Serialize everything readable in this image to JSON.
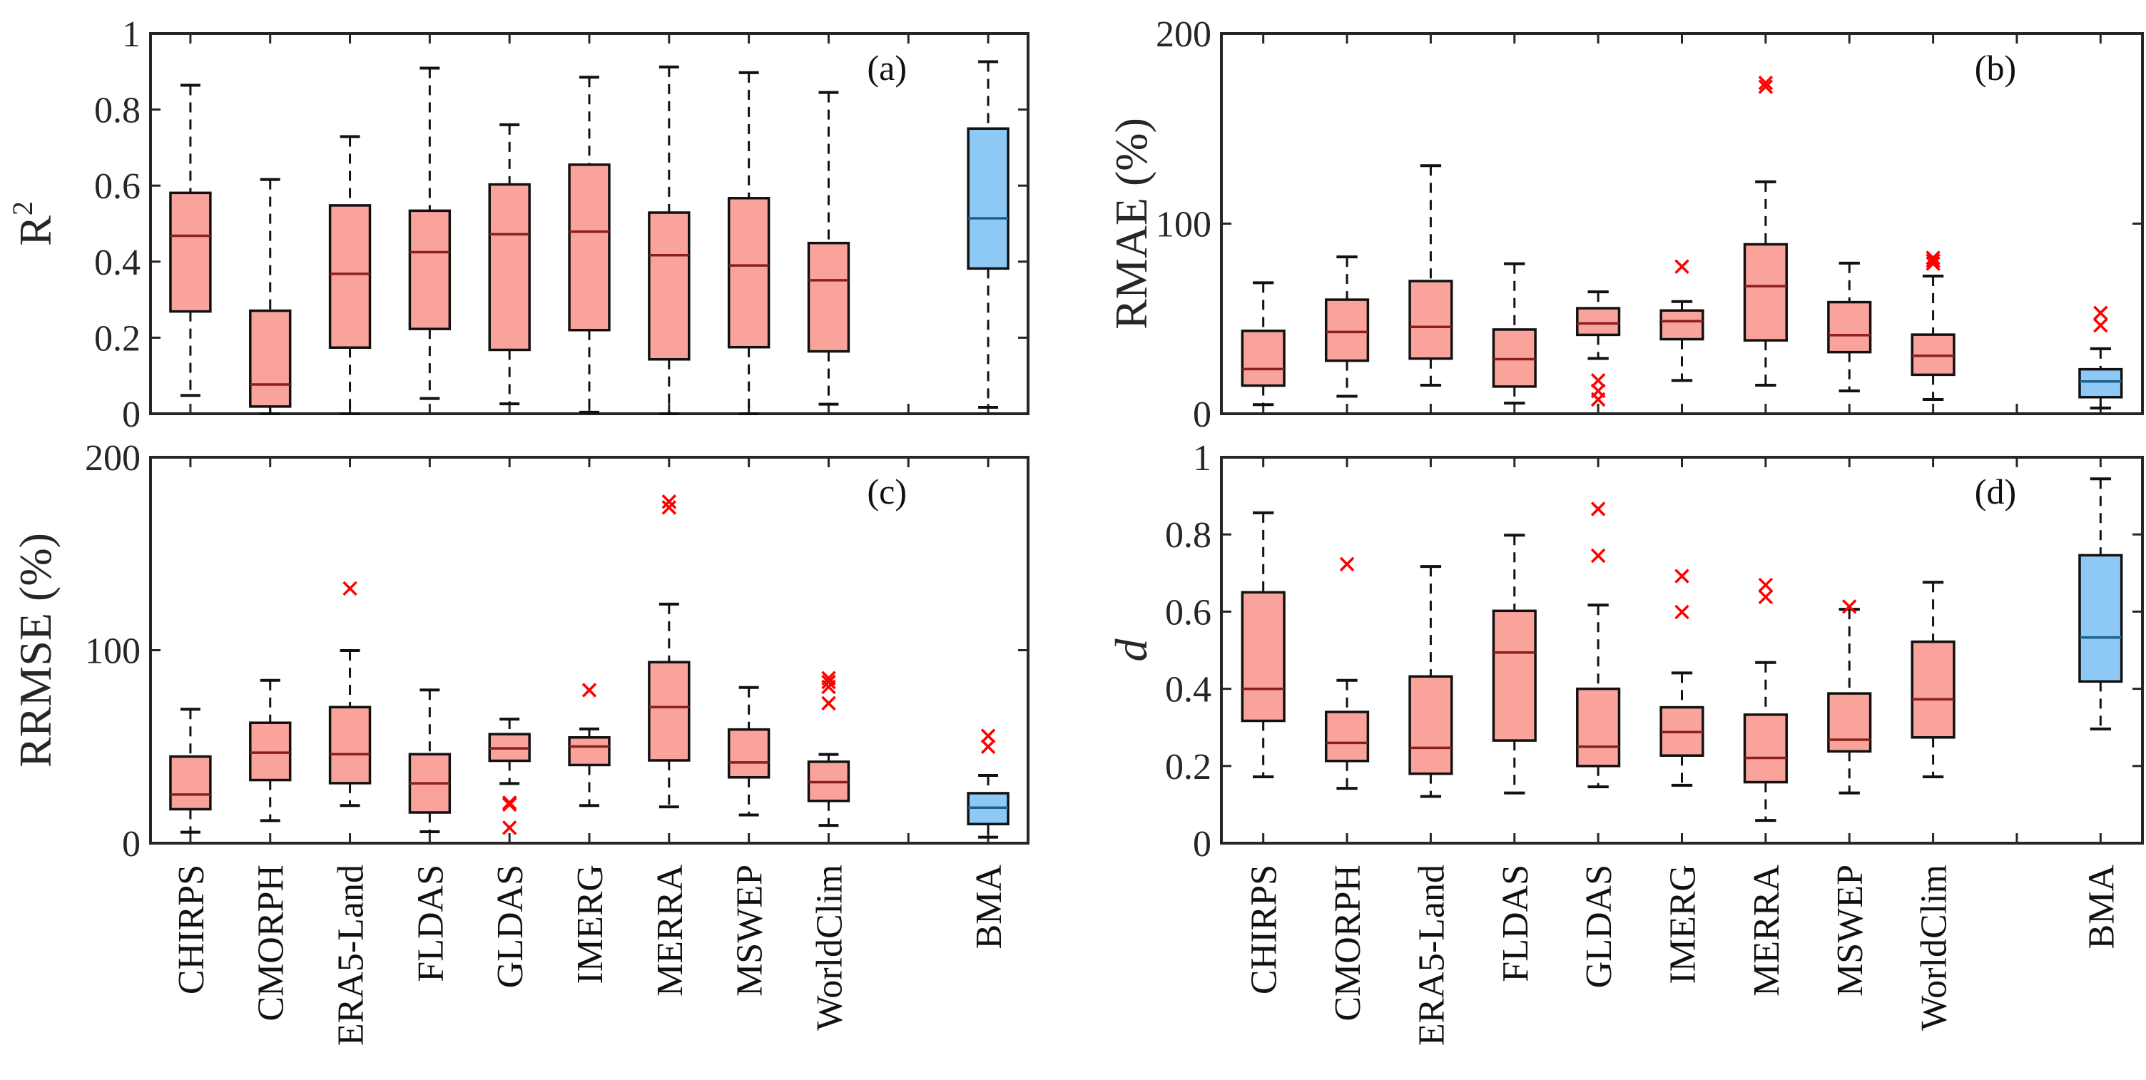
{
  "chart_data": {
    "type": "boxplot",
    "categories": [
      "CHIRPS",
      "CMORPH",
      "ERA5-Land",
      "FLDAS",
      "GLDAS",
      "IMERG",
      "MERRA",
      "MSWEP",
      "WorldClim",
      "",
      "BMA"
    ],
    "colors": {
      "products_fill": "#f9a39b",
      "products_median": "#8b1e1e",
      "bma_fill": "#8ec9f6",
      "bma_median": "#1f5f8b",
      "outlier": "#ff0000",
      "frame": "#262626"
    },
    "box_order": [
      "whisker_low",
      "q1",
      "median",
      "q3",
      "whisker_high",
      "outliers"
    ],
    "panels": [
      {
        "tag": "(a)",
        "ylabel": "R",
        "ylabel_sup": "2",
        "ylabel_italic": false,
        "ylim": [
          0,
          1
        ],
        "yticks": [
          "0",
          "0.2",
          "0.4",
          "0.6",
          "0.8",
          "1"
        ],
        "ytick_values": [
          0,
          0.2,
          0.4,
          0.6,
          0.8,
          1
        ],
        "boxes": [
          [
            0.048,
            0.269,
            0.468,
            0.581,
            0.864,
            []
          ],
          [
            0.0,
            0.019,
            0.077,
            0.271,
            0.616,
            []
          ],
          [
            0.0,
            0.174,
            0.368,
            0.548,
            0.729,
            []
          ],
          [
            0.04,
            0.223,
            0.425,
            0.534,
            0.909,
            []
          ],
          [
            0.026,
            0.168,
            0.472,
            0.603,
            0.76,
            []
          ],
          [
            0.004,
            0.22,
            0.479,
            0.655,
            0.885,
            []
          ],
          [
            0.0,
            0.143,
            0.417,
            0.529,
            0.912,
            []
          ],
          [
            0.0,
            0.175,
            0.39,
            0.567,
            0.897,
            []
          ],
          [
            0.025,
            0.164,
            0.351,
            0.449,
            0.845,
            []
          ],
          null,
          [
            0.017,
            0.382,
            0.514,
            0.75,
            0.926,
            []
          ]
        ]
      },
      {
        "tag": "(b)",
        "ylabel": "RMAE (%)",
        "ylabel_sup": "",
        "ylabel_italic": false,
        "ylim": [
          0,
          200
        ],
        "yticks": [
          "0",
          "100",
          "200"
        ],
        "ytick_values": [
          0,
          100,
          200
        ],
        "boxes": [
          [
            4.8,
            14.8,
            23.5,
            43.6,
            68.9,
            []
          ],
          [
            9.2,
            27.9,
            43,
            60,
            82.5,
            []
          ],
          [
            15,
            29,
            45.7,
            69.8,
            130.5,
            []
          ],
          [
            5.6,
            14.3,
            28.7,
            44.3,
            78.9,
            []
          ],
          [
            29.1,
            41.5,
            47.5,
            55.5,
            64.1,
            [
              17.5,
              12,
              7.5
            ]
          ],
          [
            17.5,
            39.2,
            48.7,
            54.3,
            59,
            [
              77.4
            ]
          ],
          [
            15,
            38.6,
            67.1,
            89.1,
            122,
            [
              172,
              174
            ]
          ],
          [
            12,
            32.4,
            41.3,
            58.7,
            79.2,
            []
          ],
          [
            7.5,
            20.5,
            30.5,
            41.6,
            72.4,
            [
              79,
              80.5,
              82
            ]
          ],
          null,
          [
            3,
            8.7,
            17,
            23.4,
            34.2,
            [
              46.5,
              53
            ]
          ]
        ]
      },
      {
        "tag": "(c)",
        "ylabel": "RRMSE (%)",
        "ylabel_sup": "",
        "ylabel_italic": false,
        "ylim": [
          0,
          200
        ],
        "yticks": [
          "0",
          "100",
          "200"
        ],
        "ytick_values": [
          0,
          100,
          200
        ],
        "boxes": [
          [
            5.7,
            17.6,
            25.2,
            44.9,
            69.4,
            []
          ],
          [
            11.7,
            32.7,
            46.9,
            62.4,
            84.4,
            []
          ],
          [
            19.5,
            31.1,
            46.1,
            70.5,
            99.8,
            [
              132
            ]
          ],
          [
            5.9,
            15.9,
            31,
            46.1,
            79.4,
            []
          ],
          [
            30.9,
            42.7,
            49.1,
            56.5,
            64.3,
            [
              21,
              20,
              8
            ]
          ],
          [
            19.5,
            40.5,
            50.1,
            54.8,
            59.2,
            [
              79.3
            ]
          ],
          [
            18.8,
            42.9,
            70.5,
            93.8,
            123.9,
            [
              174,
              177
            ]
          ],
          [
            14.6,
            34.1,
            41.8,
            58.9,
            80.7,
            []
          ],
          [
            9.2,
            21.9,
            31.6,
            42.2,
            46,
            [
              72.5,
              81,
              83.5,
              85.5
            ]
          ],
          null,
          [
            3.1,
            9.9,
            18.4,
            25.9,
            35.1,
            [
              50,
              55.6
            ]
          ]
        ]
      },
      {
        "tag": "(d)",
        "ylabel": "d",
        "ylabel_sup": "",
        "ylabel_italic": true,
        "ylim": [
          0,
          1
        ],
        "yticks": [
          "0",
          "0.2",
          "0.4",
          "0.6",
          "0.8",
          "1"
        ],
        "ytick_values": [
          0,
          0.2,
          0.4,
          0.6,
          0.8,
          1
        ],
        "boxes": [
          [
            0.172,
            0.317,
            0.4,
            0.65,
            0.856,
            []
          ],
          [
            0.142,
            0.213,
            0.26,
            0.34,
            0.422,
            [
              0.723
            ]
          ],
          [
            0.121,
            0.18,
            0.247,
            0.432,
            0.717,
            []
          ],
          [
            0.13,
            0.266,
            0.494,
            0.602,
            0.798,
            []
          ],
          [
            0.146,
            0.2,
            0.25,
            0.4,
            0.617,
            [
              0.745,
              0.866
            ]
          ],
          [
            0.15,
            0.227,
            0.288,
            0.352,
            0.441,
            [
              0.599,
              0.692
            ]
          ],
          [
            0.059,
            0.158,
            0.221,
            0.333,
            0.468,
            [
              0.638,
              0.669
            ]
          ],
          [
            0.13,
            0.238,
            0.268,
            0.388,
            0.606,
            [
              0.613
            ]
          ],
          [
            0.172,
            0.274,
            0.373,
            0.522,
            0.676,
            []
          ],
          null,
          [
            0.296,
            0.419,
            0.533,
            0.746,
            0.944,
            []
          ]
        ]
      }
    ]
  }
}
